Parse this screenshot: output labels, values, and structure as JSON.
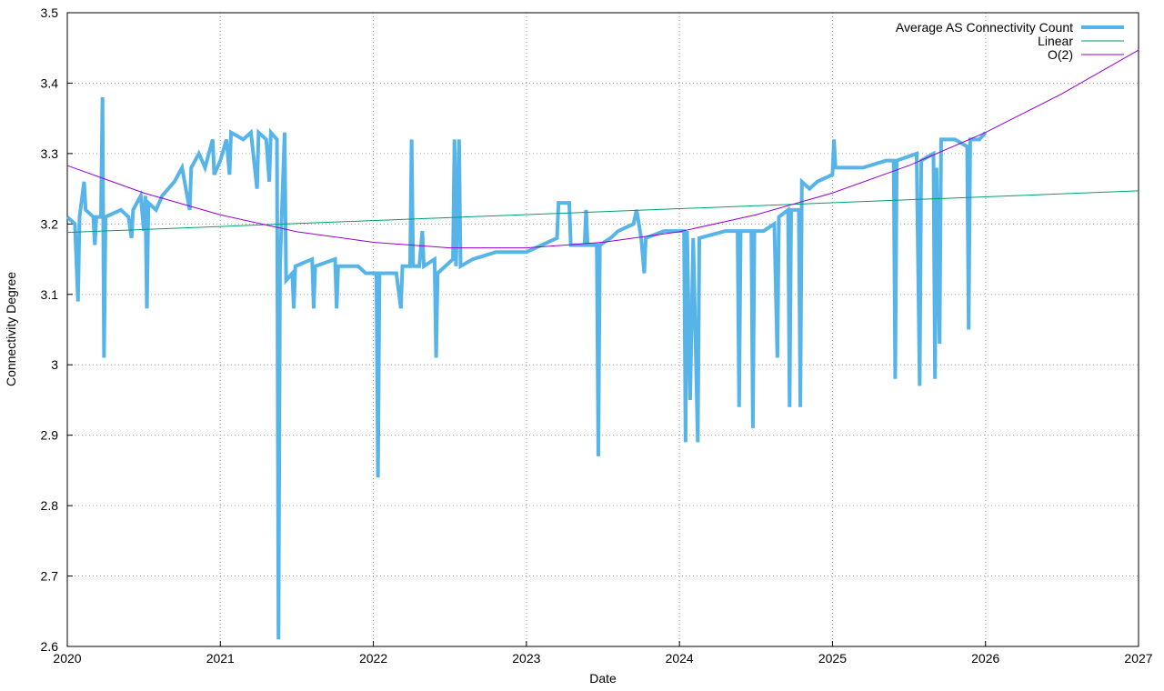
{
  "chart_data": {
    "type": "line",
    "xlabel": "Date",
    "ylabel": "Connectivity Degree",
    "xlim": [
      2020,
      2027
    ],
    "xticks": [
      2020,
      2021,
      2022,
      2023,
      2024,
      2025,
      2026,
      2027
    ],
    "ylim": [
      2.6,
      3.5
    ],
    "yticks": [
      2.6,
      2.7,
      2.8,
      2.9,
      3,
      3.1,
      3.2,
      3.3,
      3.4,
      3.5
    ],
    "grid": true,
    "legend": "top right",
    "series": [
      {
        "name": "Average AS Connectivity Count",
        "color": "#56b4e9",
        "x": [
          2020.0,
          2020.05,
          2020.07,
          2020.08,
          2020.11,
          2020.12,
          2020.17,
          2020.18,
          2020.19,
          2020.22,
          2020.23,
          2020.24,
          2020.25,
          2020.35,
          2020.4,
          2020.42,
          2020.43,
          2020.48,
          2020.5,
          2020.51,
          2020.52,
          2020.53,
          2020.58,
          2020.62,
          2020.7,
          2020.75,
          2020.8,
          2020.81,
          2020.86,
          2020.9,
          2020.95,
          2020.96,
          2021.0,
          2021.04,
          2021.06,
          2021.07,
          2021.15,
          2021.2,
          2021.24,
          2021.25,
          2021.3,
          2021.32,
          2021.33,
          2021.37,
          2021.38,
          2021.39,
          2021.42,
          2021.43,
          2021.47,
          2021.48,
          2021.49,
          2021.6,
          2021.61,
          2021.62,
          2021.75,
          2021.76,
          2021.77,
          2021.9,
          2021.95,
          2022.02,
          2022.03,
          2022.04,
          2022.15,
          2022.18,
          2022.19,
          2022.24,
          2022.25,
          2022.26,
          2022.3,
          2022.32,
          2022.33,
          2022.4,
          2022.41,
          2022.42,
          2022.52,
          2022.53,
          2022.54,
          2022.56,
          2022.57,
          2022.65,
          2022.8,
          2023.0,
          2023.1,
          2023.2,
          2023.21,
          2023.28,
          2023.29,
          2023.38,
          2023.39,
          2023.4,
          2023.46,
          2023.47,
          2023.48,
          2023.55,
          2023.6,
          2023.7,
          2023.72,
          2023.75,
          2023.77,
          2023.78,
          2023.9,
          2024.0,
          2024.03,
          2024.04,
          2024.05,
          2024.07,
          2024.09,
          2024.12,
          2024.13,
          2024.3,
          2024.38,
          2024.39,
          2024.4,
          2024.47,
          2024.48,
          2024.49,
          2024.55,
          2024.62,
          2024.64,
          2024.65,
          2024.71,
          2024.72,
          2024.73,
          2024.78,
          2024.79,
          2024.8,
          2024.85,
          2024.9,
          2025.0,
          2025.01,
          2025.02,
          2025.2,
          2025.35,
          2025.4,
          2025.41,
          2025.42,
          2025.55,
          2025.57,
          2025.58,
          2025.66,
          2025.67,
          2025.68,
          2025.7,
          2025.71,
          2025.8,
          2025.88,
          2025.89,
          2025.9,
          2025.96,
          2026.0
        ],
        "values": [
          3.21,
          3.2,
          3.09,
          3.21,
          3.26,
          3.22,
          3.21,
          3.17,
          3.21,
          3.21,
          3.38,
          3.01,
          3.21,
          3.22,
          3.21,
          3.18,
          3.22,
          3.24,
          3.19,
          3.24,
          3.08,
          3.23,
          3.22,
          3.24,
          3.26,
          3.28,
          3.22,
          3.28,
          3.3,
          3.28,
          3.32,
          3.27,
          3.29,
          3.32,
          3.27,
          3.33,
          3.32,
          3.33,
          3.25,
          3.33,
          3.32,
          3.26,
          3.33,
          3.32,
          2.61,
          3.14,
          3.33,
          3.12,
          3.13,
          3.08,
          3.14,
          3.15,
          3.08,
          3.14,
          3.15,
          3.08,
          3.14,
          3.14,
          3.13,
          3.13,
          2.84,
          3.13,
          3.13,
          3.08,
          3.14,
          3.14,
          3.32,
          3.14,
          3.14,
          3.19,
          3.14,
          3.15,
          3.01,
          3.13,
          3.15,
          3.32,
          3.14,
          3.32,
          3.14,
          3.15,
          3.16,
          3.16,
          3.17,
          3.18,
          3.23,
          3.23,
          3.17,
          3.17,
          3.22,
          3.17,
          3.17,
          2.87,
          3.17,
          3.18,
          3.19,
          3.2,
          3.22,
          3.18,
          3.13,
          3.18,
          3.19,
          3.19,
          3.19,
          2.89,
          3.19,
          2.95,
          3.18,
          2.89,
          3.18,
          3.19,
          3.19,
          2.94,
          3.19,
          3.19,
          2.91,
          3.19,
          3.19,
          3.2,
          3.01,
          3.21,
          3.22,
          2.94,
          3.22,
          3.22,
          2.94,
          3.26,
          3.25,
          3.26,
          3.27,
          3.32,
          3.28,
          3.28,
          3.29,
          3.29,
          2.98,
          3.29,
          3.3,
          2.97,
          3.29,
          3.3,
          2.98,
          3.28,
          3.03,
          3.32,
          3.32,
          3.31,
          3.05,
          3.32,
          3.32,
          3.33
        ]
      },
      {
        "name": "Linear",
        "color": "#009e73",
        "x": [
          2020,
          2027
        ],
        "values": [
          3.188,
          3.247
        ]
      },
      {
        "name": "O(2)",
        "color": "#9400d3",
        "x": [
          2020,
          2020.5,
          2021,
          2021.5,
          2022,
          2022.5,
          2023,
          2023.5,
          2024,
          2024.5,
          2025,
          2025.5,
          2026,
          2026.5,
          2027
        ],
        "values": [
          3.283,
          3.244,
          3.213,
          3.189,
          3.174,
          3.166,
          3.166,
          3.174,
          3.189,
          3.213,
          3.244,
          3.283,
          3.33,
          3.385,
          3.447
        ]
      }
    ]
  }
}
